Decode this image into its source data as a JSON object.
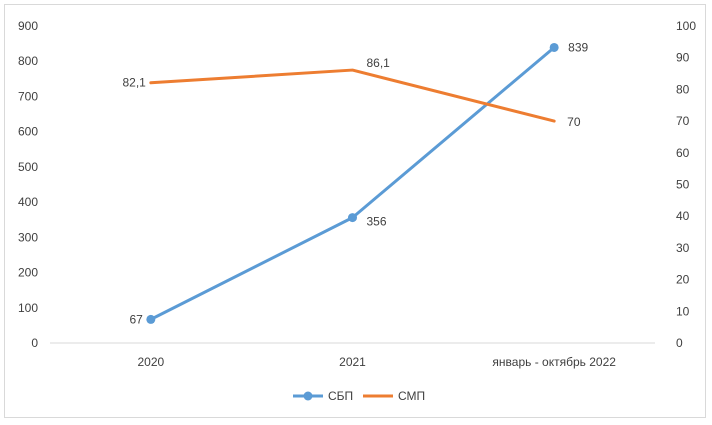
{
  "chart_data": {
    "type": "line",
    "title": "",
    "categories": [
      "2020",
      "2021",
      "январь - октябрь 2022"
    ],
    "y_left": {
      "min": 0,
      "max": 900,
      "step": 100,
      "ticks": [
        "0",
        "100",
        "200",
        "300",
        "400",
        "500",
        "600",
        "700",
        "800",
        "900"
      ]
    },
    "y_right": {
      "min": 0,
      "max": 100,
      "step": 10,
      "ticks": [
        "0",
        "10",
        "20",
        "30",
        "40",
        "50",
        "60",
        "70",
        "80",
        "90",
        "100"
      ]
    },
    "grid": false,
    "legend_position": "bottom",
    "series": [
      {
        "name": "СБП",
        "axis": "left",
        "color": "#5b9bd5",
        "markers": true,
        "values": [
          67,
          356,
          839
        ],
        "labels": [
          "67",
          "356",
          "839"
        ]
      },
      {
        "name": "СМП",
        "axis": "right",
        "color": "#ed7d31",
        "markers": false,
        "values": [
          82.1,
          86.1,
          70
        ],
        "labels": [
          "82,1",
          "86,1",
          "70"
        ]
      }
    ]
  }
}
